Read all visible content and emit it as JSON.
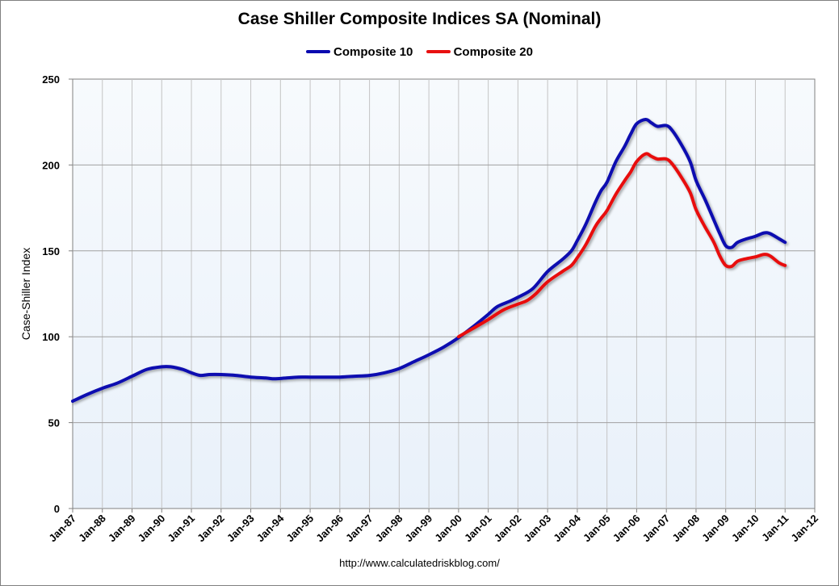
{
  "chart_data": {
    "type": "line",
    "title": "Case Shiller Composite Indices SA (Nominal)",
    "ylabel": "Case-Shiller Index",
    "xlabel": "",
    "ylim": [
      0,
      250
    ],
    "yticks": [
      0,
      50,
      100,
      150,
      200,
      250
    ],
    "xlim": [
      1987.0,
      2012.0
    ],
    "xticks": [
      {
        "x": 1987,
        "label": "Jan-87"
      },
      {
        "x": 1988,
        "label": "Jan-88"
      },
      {
        "x": 1989,
        "label": "Jan-89"
      },
      {
        "x": 1990,
        "label": "Jan-90"
      },
      {
        "x": 1991,
        "label": "Jan-91"
      },
      {
        "x": 1992,
        "label": "Jan-92"
      },
      {
        "x": 1993,
        "label": "Jan-93"
      },
      {
        "x": 1994,
        "label": "Jan-94"
      },
      {
        "x": 1995,
        "label": "Jan-95"
      },
      {
        "x": 1996,
        "label": "Jan-96"
      },
      {
        "x": 1997,
        "label": "Jan-97"
      },
      {
        "x": 1998,
        "label": "Jan-98"
      },
      {
        "x": 1999,
        "label": "Jan-99"
      },
      {
        "x": 2000,
        "label": "Jan-00"
      },
      {
        "x": 2001,
        "label": "Jan-01"
      },
      {
        "x": 2002,
        "label": "Jan-02"
      },
      {
        "x": 2003,
        "label": "Jan-03"
      },
      {
        "x": 2004,
        "label": "Jan-04"
      },
      {
        "x": 2005,
        "label": "Jan-05"
      },
      {
        "x": 2006,
        "label": "Jan-06"
      },
      {
        "x": 2007,
        "label": "Jan-07"
      },
      {
        "x": 2008,
        "label": "Jan-08"
      },
      {
        "x": 2009,
        "label": "Jan-09"
      },
      {
        "x": 2010,
        "label": "Jan-10"
      },
      {
        "x": 2011,
        "label": "Jan-11"
      },
      {
        "x": 2012,
        "label": "Jan-12"
      }
    ],
    "grid": true,
    "legend_position": "top-center",
    "source": "http://www.calculatedriskblog.com/",
    "series": [
      {
        "name": "Composite 10",
        "color": "#0a0ab0",
        "points": [
          [
            1987.0,
            62.5
          ],
          [
            1987.5,
            66.5
          ],
          [
            1988.0,
            70
          ],
          [
            1988.5,
            73
          ],
          [
            1989.0,
            77
          ],
          [
            1989.5,
            81
          ],
          [
            1990.0,
            82.5
          ],
          [
            1990.3,
            82.5
          ],
          [
            1990.7,
            81
          ],
          [
            1991.0,
            79
          ],
          [
            1991.3,
            77.5
          ],
          [
            1991.6,
            78
          ],
          [
            1992.0,
            78
          ],
          [
            1992.5,
            77.5
          ],
          [
            1993.0,
            76.5
          ],
          [
            1993.5,
            76
          ],
          [
            1993.8,
            75.5
          ],
          [
            1994.2,
            76
          ],
          [
            1994.6,
            76.5
          ],
          [
            1995.0,
            76.5
          ],
          [
            1995.5,
            76.5
          ],
          [
            1996.0,
            76.5
          ],
          [
            1996.5,
            77
          ],
          [
            1997.0,
            77.5
          ],
          [
            1997.5,
            79
          ],
          [
            1998.0,
            81.5
          ],
          [
            1998.5,
            85.5
          ],
          [
            1999.0,
            89.5
          ],
          [
            1999.5,
            94
          ],
          [
            2000.0,
            99.5
          ],
          [
            2000.5,
            106
          ],
          [
            2001.0,
            113
          ],
          [
            2001.3,
            117.5
          ],
          [
            2001.7,
            120.5
          ],
          [
            2002.0,
            123
          ],
          [
            2002.5,
            128
          ],
          [
            2003.0,
            138
          ],
          [
            2003.5,
            145
          ],
          [
            2003.8,
            150
          ],
          [
            2004.0,
            156
          ],
          [
            2004.3,
            166
          ],
          [
            2004.6,
            178
          ],
          [
            2004.8,
            185
          ],
          [
            2005.0,
            190
          ],
          [
            2005.3,
            202
          ],
          [
            2005.6,
            211
          ],
          [
            2005.8,
            218
          ],
          [
            2006.0,
            224
          ],
          [
            2006.3,
            226.5
          ],
          [
            2006.5,
            224.5
          ],
          [
            2006.7,
            222.5
          ],
          [
            2007.0,
            223
          ],
          [
            2007.2,
            220
          ],
          [
            2007.5,
            212
          ],
          [
            2007.8,
            202
          ],
          [
            2008.0,
            191
          ],
          [
            2008.3,
            180
          ],
          [
            2008.6,
            168
          ],
          [
            2008.8,
            160
          ],
          [
            2009.0,
            153
          ],
          [
            2009.2,
            152
          ],
          [
            2009.4,
            155
          ],
          [
            2009.7,
            157
          ],
          [
            2010.0,
            158.5
          ],
          [
            2010.3,
            160.5
          ],
          [
            2010.5,
            160
          ],
          [
            2010.8,
            157
          ],
          [
            2011.0,
            155
          ]
        ]
      },
      {
        "name": "Composite 20",
        "color": "#e81010",
        "points": [
          [
            2000.0,
            100
          ],
          [
            2000.5,
            105
          ],
          [
            2001.0,
            110
          ],
          [
            2001.5,
            115.5
          ],
          [
            2002.0,
            119
          ],
          [
            2002.3,
            121
          ],
          [
            2002.6,
            125
          ],
          [
            2003.0,
            132
          ],
          [
            2003.5,
            138
          ],
          [
            2003.8,
            141.5
          ],
          [
            2004.0,
            146
          ],
          [
            2004.3,
            154
          ],
          [
            2004.6,
            164
          ],
          [
            2004.8,
            169
          ],
          [
            2005.0,
            173.5
          ],
          [
            2005.3,
            183
          ],
          [
            2005.6,
            191
          ],
          [
            2005.8,
            196
          ],
          [
            2006.0,
            202
          ],
          [
            2006.3,
            206.5
          ],
          [
            2006.5,
            205
          ],
          [
            2006.7,
            203.5
          ],
          [
            2007.0,
            203.5
          ],
          [
            2007.2,
            200.5
          ],
          [
            2007.5,
            193
          ],
          [
            2007.8,
            184
          ],
          [
            2008.0,
            174
          ],
          [
            2008.3,
            164
          ],
          [
            2008.6,
            155
          ],
          [
            2008.8,
            147
          ],
          [
            2009.0,
            141.5
          ],
          [
            2009.2,
            141
          ],
          [
            2009.4,
            144
          ],
          [
            2009.7,
            145.5
          ],
          [
            2010.0,
            146.5
          ],
          [
            2010.3,
            148
          ],
          [
            2010.5,
            147
          ],
          [
            2010.8,
            143
          ],
          [
            2011.0,
            141.5
          ]
        ]
      }
    ]
  }
}
